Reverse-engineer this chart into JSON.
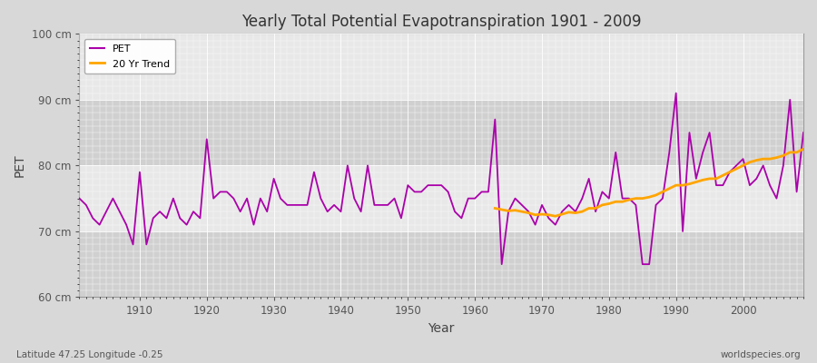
{
  "title": "Yearly Total Potential Evapotranspiration 1901 - 2009",
  "xlabel": "Year",
  "ylabel": "PET",
  "subtitle_left": "Latitude 47.25 Longitude -0.25",
  "subtitle_right": "worldspecies.org",
  "ylim": [
    60,
    100
  ],
  "xlim": [
    1901,
    2009
  ],
  "yticks": [
    60,
    70,
    80,
    90,
    100
  ],
  "ytick_labels": [
    "60 cm",
    "70 cm",
    "80 cm",
    "90 cm",
    "100 cm"
  ],
  "pet_color": "#AA00AA",
  "trend_color": "#FFA500",
  "bg_color": "#D8D8D8",
  "plot_bg_color": "#E0E0E0",
  "grid_color": "#FFFFFF",
  "pet_linewidth": 1.3,
  "trend_linewidth": 2.0,
  "years": [
    1901,
    1902,
    1903,
    1904,
    1905,
    1906,
    1907,
    1908,
    1909,
    1910,
    1911,
    1912,
    1913,
    1914,
    1915,
    1916,
    1917,
    1918,
    1919,
    1920,
    1921,
    1922,
    1923,
    1924,
    1925,
    1926,
    1927,
    1928,
    1929,
    1930,
    1931,
    1932,
    1933,
    1934,
    1935,
    1936,
    1937,
    1938,
    1939,
    1940,
    1941,
    1942,
    1943,
    1944,
    1945,
    1946,
    1947,
    1948,
    1949,
    1950,
    1951,
    1952,
    1953,
    1954,
    1955,
    1956,
    1957,
    1958,
    1959,
    1960,
    1961,
    1962,
    1963,
    1964,
    1965,
    1966,
    1967,
    1968,
    1969,
    1970,
    1971,
    1972,
    1973,
    1974,
    1975,
    1976,
    1977,
    1978,
    1979,
    1980,
    1981,
    1982,
    1983,
    1984,
    1985,
    1986,
    1987,
    1988,
    1989,
    1990,
    1991,
    1992,
    1993,
    1994,
    1995,
    1996,
    1997,
    1998,
    1999,
    2000,
    2001,
    2002,
    2003,
    2004,
    2005,
    2006,
    2007,
    2008,
    2009
  ],
  "pet_values": [
    75,
    74,
    72,
    71,
    73,
    75,
    73,
    71,
    68,
    79,
    68,
    72,
    73,
    72,
    75,
    72,
    71,
    73,
    72,
    84,
    75,
    76,
    76,
    75,
    73,
    75,
    71,
    75,
    73,
    78,
    75,
    74,
    74,
    74,
    74,
    79,
    75,
    73,
    74,
    73,
    80,
    75,
    73,
    80,
    74,
    74,
    74,
    75,
    72,
    77,
    76,
    76,
    77,
    77,
    77,
    76,
    73,
    72,
    75,
    75,
    76,
    76,
    87,
    65,
    73,
    75,
    74,
    73,
    71,
    74,
    72,
    71,
    73,
    74,
    73,
    75,
    78,
    73,
    76,
    75,
    82,
    75,
    75,
    74,
    65,
    65,
    74,
    75,
    82,
    91,
    70,
    85,
    78,
    82,
    85,
    77,
    77,
    79,
    80,
    81,
    77,
    78,
    80,
    77,
    75,
    80,
    90,
    76,
    85
  ],
  "trend_start_year": 1963,
  "trend_years": [
    1963,
    1964,
    1965,
    1966,
    1967,
    1968,
    1969,
    1970,
    1971,
    1972,
    1973,
    1974,
    1975,
    1976,
    1977,
    1978,
    1979,
    1980,
    1981,
    1982,
    1983,
    1984,
    1985,
    1986,
    1987,
    1988,
    1989,
    1990,
    1991,
    1992,
    1993,
    1994,
    1995,
    1996,
    1997,
    1998,
    1999,
    2000,
    2001,
    2002,
    2003,
    2004,
    2005,
    2006,
    2007,
    2008,
    2009
  ],
  "trend_values": [
    73.5,
    73.3,
    73.1,
    73.2,
    73.0,
    72.8,
    72.5,
    72.6,
    72.5,
    72.3,
    72.6,
    72.9,
    72.8,
    73.0,
    73.5,
    73.5,
    74.0,
    74.2,
    74.5,
    74.5,
    74.8,
    75.0,
    75.0,
    75.2,
    75.5,
    76.0,
    76.5,
    77.0,
    77.0,
    77.2,
    77.5,
    77.8,
    78.0,
    78.0,
    78.5,
    79.0,
    79.5,
    80.0,
    80.5,
    80.8,
    81.0,
    81.0,
    81.2,
    81.5,
    82.0,
    82.0,
    82.5
  ],
  "band_ranges": [
    [
      60,
      70
    ],
    [
      80,
      90
    ]
  ],
  "band_color": "#CACACA"
}
